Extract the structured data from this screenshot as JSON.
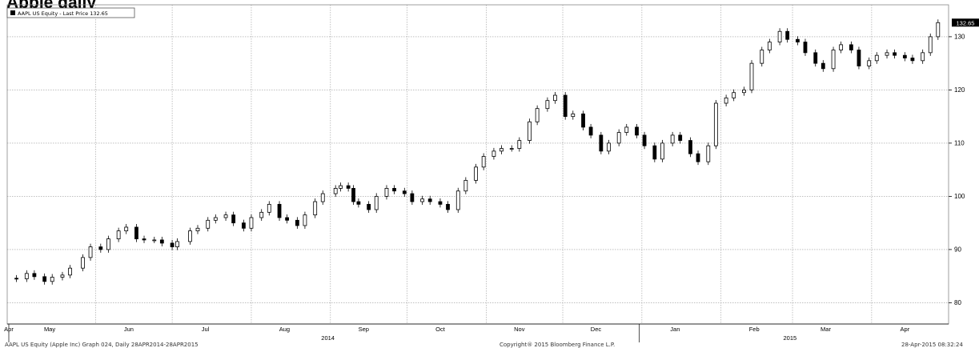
{
  "page_title": "Apple daily",
  "footer": {
    "left": "AAPL US Equity (Apple Inc) Graph 024, Daily 28APR2014-28APR2015",
    "center": "Copyright® 2015 Bloomberg Finance L.P.",
    "right": "28-Apr-2015 08:32:24"
  },
  "colors": {
    "candle": "#000000",
    "grid": "#9a9a9a",
    "price_tag": "#000000"
  },
  "chart_data": {
    "type": "candlestick",
    "title": "Apple daily",
    "legend": {
      "text": "AAPL US Equity - Last Price 132.65",
      "placement": "top-left"
    },
    "last_price_label": "132.65",
    "last_price": 132.65,
    "x_range": [
      "2014-04-28",
      "2015-04-28"
    ],
    "ylim": [
      76,
      136
    ],
    "y_ticks": [
      80,
      90,
      100,
      110,
      120,
      130
    ],
    "y_axis_side": "right",
    "grid": true,
    "month_ticks": [
      {
        "label": "Apr",
        "date": "2014-04-28"
      },
      {
        "label": "May",
        "date": "2014-05-14"
      },
      {
        "label": "Jun",
        "date": "2014-06-14"
      },
      {
        "label": "Jul",
        "date": "2014-07-14"
      },
      {
        "label": "Aug",
        "date": "2014-08-14"
      },
      {
        "label": "Sep",
        "date": "2014-09-14"
      },
      {
        "label": "Oct",
        "date": "2014-10-14"
      },
      {
        "label": "Nov",
        "date": "2014-11-14"
      },
      {
        "label": "Dec",
        "date": "2014-12-14"
      },
      {
        "label": "Jan",
        "date": "2015-01-14"
      },
      {
        "label": "Feb",
        "date": "2015-02-14"
      },
      {
        "label": "Mar",
        "date": "2015-03-14"
      },
      {
        "label": "Apr",
        "date": "2015-04-14"
      }
    ],
    "year_labels": [
      {
        "label": "2014",
        "date": "2014-08-31"
      },
      {
        "label": "2015",
        "date": "2015-02-28"
      }
    ],
    "year_separators": [
      "2014-04-28",
      "2014-12-31"
    ],
    "month_grid": [
      "2014-06-01",
      "2014-07-01",
      "2014-08-01",
      "2014-09-01",
      "2014-10-01",
      "2014-11-01",
      "2014-12-01",
      "2015-01-01",
      "2015-02-01",
      "2015-03-01",
      "2015-04-01"
    ],
    "closes": [
      [
        "2014-04-28",
        84.6
      ],
      [
        "2014-05-01",
        84.5
      ],
      [
        "2014-05-05",
        85.5
      ],
      [
        "2014-05-08",
        84.9
      ],
      [
        "2014-05-12",
        84.0
      ],
      [
        "2014-05-15",
        84.8
      ],
      [
        "2014-05-19",
        85.2
      ],
      [
        "2014-05-22",
        86.5
      ],
      [
        "2014-05-27",
        88.5
      ],
      [
        "2014-05-30",
        90.5
      ],
      [
        "2014-06-03",
        90.0
      ],
      [
        "2014-06-06",
        92.0
      ],
      [
        "2014-06-10",
        93.5
      ],
      [
        "2014-06-13",
        94.2
      ],
      [
        "2014-06-17",
        92.0
      ],
      [
        "2014-06-20",
        91.8
      ],
      [
        "2014-06-24",
        91.8
      ],
      [
        "2014-06-27",
        91.2
      ],
      [
        "2014-07-01",
        90.5
      ],
      [
        "2014-07-03",
        91.5
      ],
      [
        "2014-07-08",
        93.5
      ],
      [
        "2014-07-11",
        94.0
      ],
      [
        "2014-07-15",
        95.5
      ],
      [
        "2014-07-18",
        96.0
      ],
      [
        "2014-07-22",
        96.5
      ],
      [
        "2014-07-25",
        95.0
      ],
      [
        "2014-07-29",
        94.0
      ],
      [
        "2014-08-01",
        96.0
      ],
      [
        "2014-08-05",
        97.0
      ],
      [
        "2014-08-08",
        98.5
      ],
      [
        "2014-08-12",
        96.0
      ],
      [
        "2014-08-15",
        95.5
      ],
      [
        "2014-08-19",
        94.5
      ],
      [
        "2014-08-22",
        96.5
      ],
      [
        "2014-08-26",
        99.0
      ],
      [
        "2014-08-29",
        100.5
      ],
      [
        "2014-09-03",
        101.5
      ],
      [
        "2014-09-05",
        102.0
      ],
      [
        "2014-09-08",
        101.5
      ],
      [
        "2014-09-10",
        99.0
      ],
      [
        "2014-09-12",
        98.5
      ],
      [
        "2014-09-16",
        97.5
      ],
      [
        "2014-09-19",
        100.0
      ],
      [
        "2014-09-23",
        101.5
      ],
      [
        "2014-09-26",
        101.0
      ],
      [
        "2014-09-30",
        100.5
      ],
      [
        "2014-10-03",
        99.0
      ],
      [
        "2014-10-07",
        99.5
      ],
      [
        "2014-10-10",
        99.0
      ],
      [
        "2014-10-14",
        98.5
      ],
      [
        "2014-10-17",
        97.5
      ],
      [
        "2014-10-21",
        101.0
      ],
      [
        "2014-10-24",
        103.0
      ],
      [
        "2014-10-28",
        105.5
      ],
      [
        "2014-10-31",
        107.5
      ],
      [
        "2014-11-04",
        108.5
      ],
      [
        "2014-11-07",
        109.0
      ],
      [
        "2014-11-11",
        109.0
      ],
      [
        "2014-11-14",
        110.5
      ],
      [
        "2014-11-18",
        114.0
      ],
      [
        "2014-11-21",
        116.5
      ],
      [
        "2014-11-25",
        118.0
      ],
      [
        "2014-11-28",
        119.0
      ],
      [
        "2014-12-02",
        115.0
      ],
      [
        "2014-12-05",
        115.5
      ],
      [
        "2014-12-09",
        113.0
      ],
      [
        "2014-12-12",
        111.5
      ],
      [
        "2014-12-16",
        108.5
      ],
      [
        "2014-12-19",
        110.0
      ],
      [
        "2014-12-23",
        112.0
      ],
      [
        "2014-12-26",
        113.0
      ],
      [
        "2014-12-30",
        111.5
      ],
      [
        "2015-01-02",
        109.5
      ],
      [
        "2015-01-06",
        107.0
      ],
      [
        "2015-01-09",
        110.0
      ],
      [
        "2015-01-13",
        111.5
      ],
      [
        "2015-01-16",
        110.5
      ],
      [
        "2015-01-20",
        108.0
      ],
      [
        "2015-01-23",
        106.5
      ],
      [
        "2015-01-27",
        109.5
      ],
      [
        "2015-01-30",
        117.5
      ],
      [
        "2015-02-03",
        118.5
      ],
      [
        "2015-02-06",
        119.5
      ],
      [
        "2015-02-10",
        120.0
      ],
      [
        "2015-02-13",
        125.0
      ],
      [
        "2015-02-17",
        127.5
      ],
      [
        "2015-02-20",
        129.0
      ],
      [
        "2015-02-24",
        131.0
      ],
      [
        "2015-02-27",
        129.5
      ],
      [
        "2015-03-03",
        129.0
      ],
      [
        "2015-03-06",
        127.0
      ],
      [
        "2015-03-10",
        125.0
      ],
      [
        "2015-03-13",
        124.0
      ],
      [
        "2015-03-17",
        127.5
      ],
      [
        "2015-03-20",
        128.5
      ],
      [
        "2015-03-24",
        127.5
      ],
      [
        "2015-03-27",
        124.5
      ],
      [
        "2015-03-31",
        125.5
      ],
      [
        "2015-04-03",
        126.5
      ],
      [
        "2015-04-07",
        127.0
      ],
      [
        "2015-04-10",
        126.5
      ],
      [
        "2015-04-14",
        126.0
      ],
      [
        "2015-04-17",
        125.5
      ],
      [
        "2015-04-21",
        127.0
      ],
      [
        "2015-04-24",
        130.0
      ],
      [
        "2015-04-27",
        132.65
      ]
    ]
  }
}
